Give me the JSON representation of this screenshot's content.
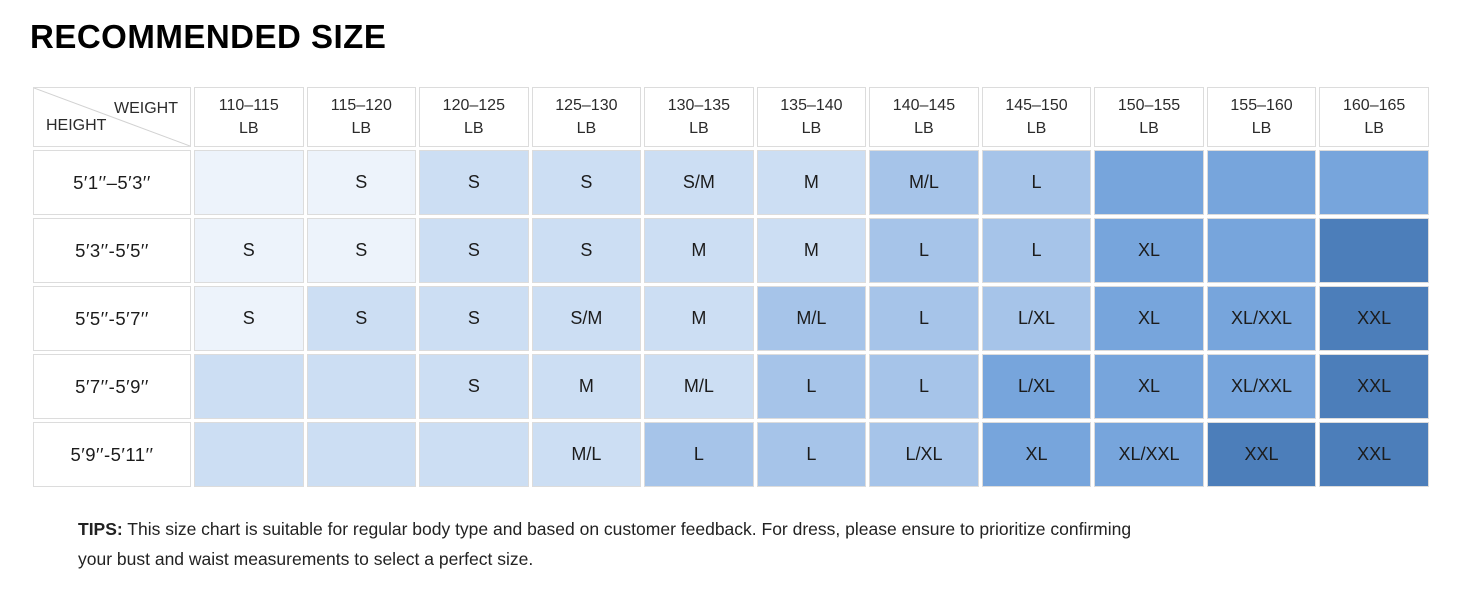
{
  "title": "RECOMMENDED SIZE",
  "colors": {
    "border": "#dcdcdc",
    "header_bg": "#ffffff",
    "text": "#1c1c1c",
    "tiers": {
      "1": "#edf3fb",
      "2": "#ccdef3",
      "3": "#a6c4e9",
      "4": "#77a5dc",
      "5": "#4c7eba"
    }
  },
  "chart_data": {
    "type": "heatmap",
    "title": "RECOMMENDED SIZE",
    "x_axis_label": "WEIGHT",
    "y_axis_label": "HEIGHT",
    "columns": [
      "110–115 LB",
      "115–120 LB",
      "120–125 LB",
      "125–130 LB",
      "130–135 LB",
      "135–140 LB",
      "140–145 LB",
      "145–150 LB",
      "150–155 LB",
      "155–160 LB",
      "160–165 LB"
    ],
    "rows": [
      "5′1′′–5′3′′",
      "5′3′′-5′5′′",
      "5′5′′-5′7′′",
      "5′7′′-5′9′′",
      "5′9′′-5′11′′"
    ],
    "values": [
      [
        "",
        "S",
        "S",
        "S",
        "S/M",
        "M",
        "M/L",
        "L",
        "",
        "",
        ""
      ],
      [
        "S",
        "S",
        "S",
        "S",
        "M",
        "M",
        "L",
        "L",
        "XL",
        "",
        ""
      ],
      [
        "S",
        "S",
        "S",
        "S/M",
        "M",
        "M/L",
        "L",
        "L/XL",
        "XL",
        "XL/XXL",
        "XXL"
      ],
      [
        "",
        "",
        "S",
        "M",
        "M/L",
        "L",
        "L",
        "L/XL",
        "XL",
        "XL/XXL",
        "XXL"
      ],
      [
        "",
        "",
        "",
        "M/L",
        "L",
        "L",
        "L/XL",
        "XL",
        "XL/XXL",
        "XXL",
        "XXL"
      ]
    ],
    "shade_tiers": [
      [
        1,
        1,
        2,
        2,
        2,
        2,
        3,
        3,
        4,
        4,
        4
      ],
      [
        1,
        1,
        2,
        2,
        2,
        2,
        3,
        3,
        4,
        4,
        5
      ],
      [
        1,
        2,
        2,
        2,
        2,
        3,
        3,
        3,
        4,
        4,
        5
      ],
      [
        2,
        2,
        2,
        2,
        2,
        3,
        3,
        4,
        4,
        4,
        5
      ],
      [
        2,
        2,
        2,
        2,
        3,
        3,
        3,
        4,
        4,
        5,
        5
      ]
    ],
    "legend_position": "none",
    "grid": true
  },
  "tips": {
    "label": "TIPS:",
    "lines": [
      "This size chart is suitable for regular body type and based on customer feedback. For dress, please ensure to prioritize confirming",
      "your bust and waist measurements to select a perfect size."
    ]
  }
}
